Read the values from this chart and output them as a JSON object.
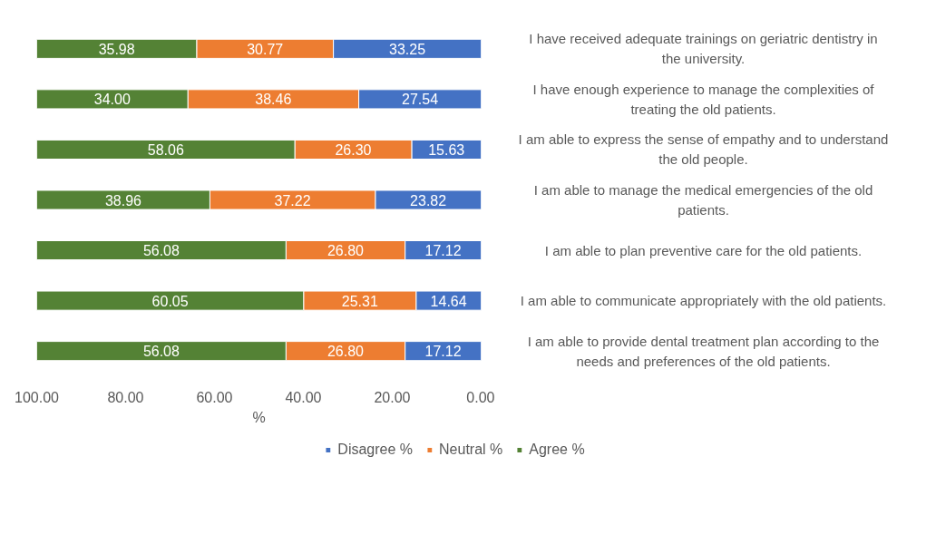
{
  "chart_data": {
    "type": "bar",
    "orientation": "horizontal",
    "stacked": true,
    "categories": [
      "I have received adequate trainings on geriatric dentistry in the university.",
      "I have enough experience to manage the complexities of treating the old patients.",
      "I am able to express the sense of empathy and to understand the old people.",
      "I am able to manage the medical emergencies of the old patients.",
      "I am able to plan preventive care for the old patients.",
      "I am able to communicate appropriately with the old patients.",
      "I am able to provide dental treatment plan according to the needs and preferences of the old patients."
    ],
    "series": [
      {
        "name": "Disagree %",
        "color": "#4472c4",
        "values": [
          33.25,
          27.54,
          15.63,
          23.82,
          17.12,
          14.64,
          17.12
        ],
        "value_labels": [
          "33.25",
          "27.54",
          "15.63",
          "23.82",
          "17.12",
          "14.64",
          "17.12"
        ]
      },
      {
        "name": "Neutral %",
        "color": "#ed7d31",
        "values": [
          30.77,
          38.46,
          26.3,
          37.22,
          26.8,
          25.31,
          26.8
        ],
        "value_labels": [
          "30.77",
          "38.46",
          "26.30",
          "37.22",
          "26.80",
          "25.31",
          "26.80"
        ]
      },
      {
        "name": "Agree %",
        "color": "#548235",
        "values": [
          35.98,
          34.0,
          58.06,
          38.96,
          56.08,
          60.05,
          56.08
        ],
        "value_labels": [
          "35.98",
          "34.00",
          "58.06",
          "38.96",
          "56.08",
          "60.05",
          "56.08"
        ]
      }
    ],
    "xlim": [
      100,
      0
    ],
    "xticks": [
      {
        "value": 100,
        "label": "100.00"
      },
      {
        "value": 80,
        "label": "80.00"
      },
      {
        "value": 60,
        "label": "60.00"
      },
      {
        "value": 40,
        "label": "40.00"
      },
      {
        "value": 20,
        "label": "20.00"
      },
      {
        "value": 0,
        "label": "0.00"
      }
    ],
    "xlabel": "%",
    "legend": "bottom",
    "grid": false
  }
}
